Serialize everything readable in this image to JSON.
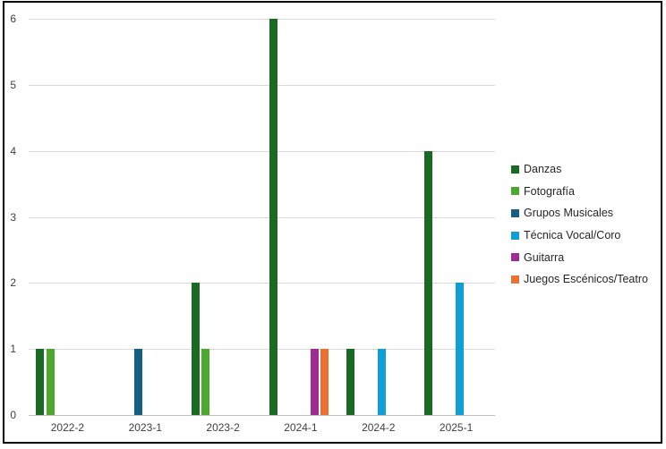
{
  "chart_data": {
    "type": "bar",
    "title": "",
    "categories": [
      "2022-2",
      "2023-1",
      "2023-2",
      "2024-1",
      "2024-2",
      "2025-1"
    ],
    "series": [
      {
        "name": "Danzas",
        "color": "#196B24",
        "values": [
          1,
          0,
          2,
          6,
          1,
          4
        ]
      },
      {
        "name": "Fotografía",
        "color": "#4EA72E",
        "values": [
          1,
          0,
          1,
          0,
          0,
          0
        ]
      },
      {
        "name": "Grupos Musicales",
        "color": "#156082",
        "values": [
          0,
          1,
          0,
          0,
          0,
          0
        ]
      },
      {
        "name": "Técnica Vocal/Coro",
        "color": "#0F9ED5",
        "values": [
          0,
          0,
          0,
          0,
          1,
          2
        ]
      },
      {
        "name": "Guitarra",
        "color": "#A02B93",
        "values": [
          0,
          0,
          0,
          1,
          0,
          0
        ]
      },
      {
        "name": "Juegos Escénicos/Teatro",
        "color": "#E97132",
        "values": [
          0,
          0,
          0,
          1,
          0,
          0
        ]
      }
    ],
    "xlabel": "",
    "ylabel": "",
    "ylim": [
      0,
      6
    ],
    "yticks": [
      0,
      1,
      2,
      3,
      4,
      5,
      6
    ],
    "grid": "horizontal",
    "legend_position": "right",
    "colors": {
      "gridline": "#d9d9d9",
      "axis_line": "#bfbfbf",
      "tick_text": "#404040",
      "legend_text": "#262626",
      "frame_border": "#000000",
      "background": "#ffffff"
    }
  }
}
